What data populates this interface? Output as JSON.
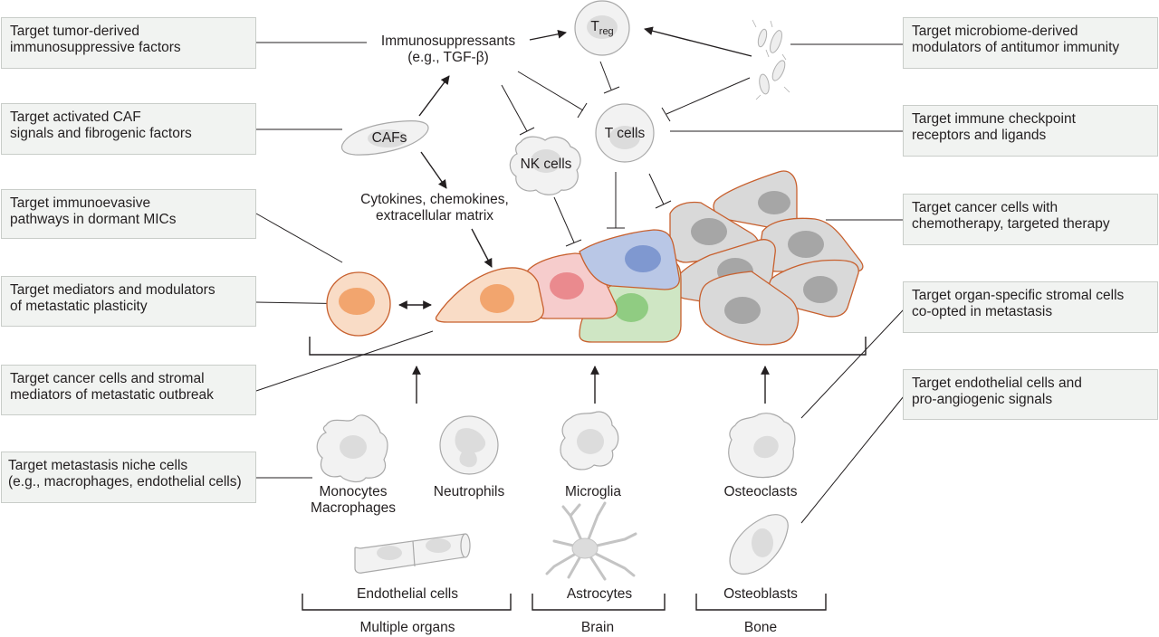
{
  "left_boxes": [
    {
      "id": "tumor-factors",
      "lines": [
        "Target tumor-derived",
        "immunosuppressive factors"
      ]
    },
    {
      "id": "caf",
      "lines": [
        "Target activated CAF",
        "signals and fibrogenic factors"
      ]
    },
    {
      "id": "dormant",
      "lines": [
        "Target immunoevasive",
        "pathways in dormant MICs"
      ]
    },
    {
      "id": "plasticity",
      "lines": [
        "Target mediators and modulators",
        "of metastatic plasticity"
      ]
    },
    {
      "id": "outbreak",
      "lines": [
        "Target cancer cells and stromal",
        "mediators of metastatic outbreak"
      ]
    },
    {
      "id": "niche",
      "lines": [
        "Target metastasis niche cells",
        "(e.g., macrophages, endothelial cells)"
      ]
    }
  ],
  "right_boxes": [
    {
      "id": "microbiome",
      "lines": [
        "Target microbiome-derived",
        "modulators of antitumor immunity"
      ]
    },
    {
      "id": "checkpoint",
      "lines": [
        "Target immune checkpoint",
        "receptors and ligands"
      ]
    },
    {
      "id": "chemo",
      "lines": [
        "Target cancer cells with",
        "chemotherapy, targeted therapy"
      ]
    },
    {
      "id": "stromal",
      "lines": [
        "Target organ-specific stromal cells",
        "co-opted in metastasis"
      ]
    },
    {
      "id": "endothelial",
      "lines": [
        "Target endothelial cells and",
        "pro-angiogenic signals"
      ]
    }
  ],
  "labels": {
    "immunosuppressants": [
      "Immunosuppressants",
      "(e.g., TGF-β)"
    ],
    "treg_main": "T",
    "treg_sub": "reg",
    "cafs": "CAFs",
    "t_cells": "T cells",
    "nk_cells": "NK cells",
    "cytokines": [
      "Cytokines, chemokines,",
      "extracellular matrix"
    ],
    "monocytes": [
      "Monocytes",
      "Macrophages"
    ],
    "neutrophils": "Neutrophils",
    "microglia": "Microglia",
    "osteoclasts": "Osteoclasts",
    "endothelial_cells": "Endothelial cells",
    "astrocytes": "Astrocytes",
    "osteoblasts": "Osteoblasts",
    "multiple_organs": "Multiple organs",
    "brain": "Brain",
    "bone": "Bone"
  },
  "colors": {
    "cancer_outline": "#c8602e",
    "orange_fill": "#f9dcc6",
    "orange_nucleus": "#f2a56e",
    "pink_fill": "#f6cccc",
    "pink_nucleus": "#ea8a8e",
    "blue_fill": "#b9c7e6",
    "blue_nucleus": "#7f98d0",
    "green_fill": "#cfe6c4",
    "green_nucleus": "#90cc82",
    "gray_fill": "#d4d4d4",
    "gray_nucleus": "#a6a6a6"
  }
}
